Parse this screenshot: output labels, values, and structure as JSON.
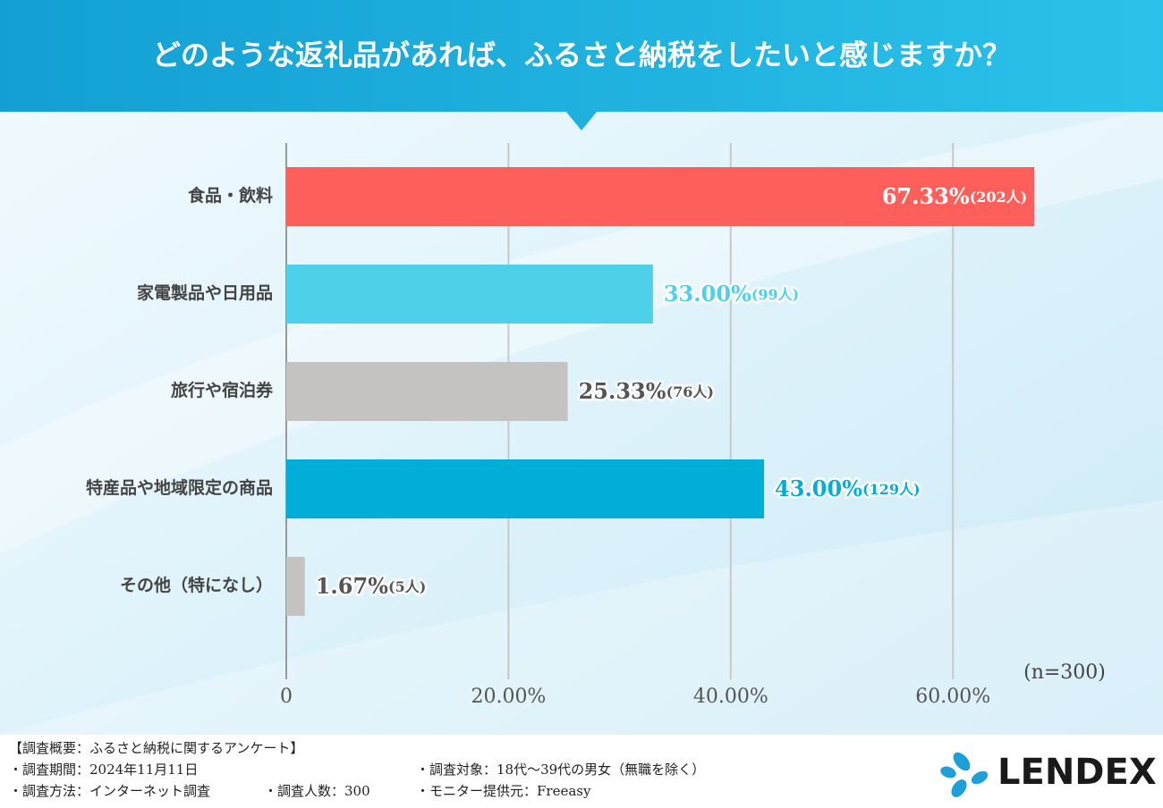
{
  "chart_data": {
    "type": "bar",
    "orientation": "horizontal",
    "title": "どのような返礼品があれば、ふるさと納税をしたいと感じますか？",
    "categories": [
      "食品・飲料",
      "家電製品や日用品",
      "旅行や宿泊券",
      "特産品や地域限定の商品",
      "その他（特になし）"
    ],
    "values": [
      67.33,
      33.0,
      25.33,
      43.0,
      1.67
    ],
    "value_labels": [
      "67.33%",
      "33.00%",
      "25.33%",
      "43.00%",
      "1.67%"
    ],
    "count_labels": [
      "(202人)",
      "(99人)",
      "(76人)",
      "(129人)",
      "(5人)"
    ],
    "colors": [
      "#ff5f5a",
      "#4dd0ea",
      "#c4c3c2",
      "#00aed8",
      "#c4c3c2"
    ],
    "xlim": [
      0,
      70
    ],
    "xticks": [
      0,
      {
        "value": 20,
        "label": "20.00%"
      },
      {
        "value": 40,
        "label": "40.00%"
      },
      {
        "value": 60,
        "label": "60.00%"
      }
    ],
    "grid": true,
    "sample_note": "(n=300)"
  },
  "footer": {
    "heading": "【調査概要：ふるさと納税に関するアンケート】",
    "period": "・調査期間：2024年11月11日",
    "method": "・調査方法：インターネット調査",
    "count": "・調査人数：300",
    "target": "・調査対象：18代～39代の男女（無職を除く）",
    "provider": "・モニター提供元：Freeasy",
    "logo": "LENDEX"
  }
}
